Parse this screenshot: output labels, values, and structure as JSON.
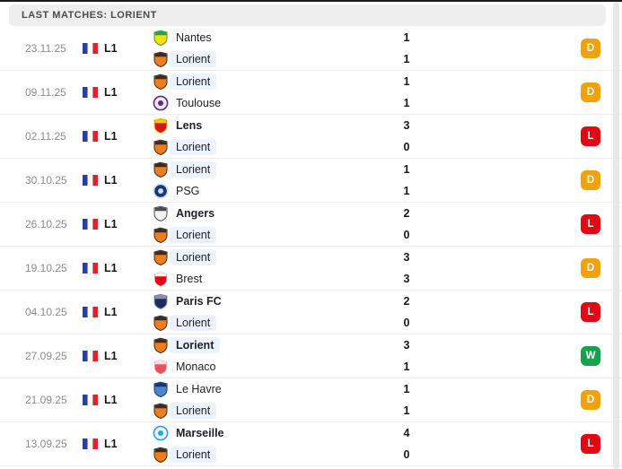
{
  "header": {
    "title": "LAST MATCHES: LORIENT"
  },
  "colors": {
    "win": "#15a24b",
    "draw": "#f0a20d",
    "loss": "#e30613",
    "highlight": "#edf3fc"
  },
  "competition_flag": "france-flag",
  "rows": [
    {
      "date": "23.11.25",
      "competition": "L1",
      "result": "D",
      "home": {
        "name": "Nantes",
        "score": "1",
        "winner": false,
        "highlight": false,
        "logo": {
          "shape": "shield",
          "primary": "#f8e000",
          "secondary": "#2f9e44"
        }
      },
      "away": {
        "name": "Lorient",
        "score": "1",
        "winner": false,
        "highlight": true,
        "logo": {
          "shape": "shield",
          "primary": "#ee7d1e",
          "secondary": "#3a2c22"
        }
      }
    },
    {
      "date": "09.11.25",
      "competition": "L1",
      "result": "D",
      "home": {
        "name": "Lorient",
        "score": "1",
        "winner": false,
        "highlight": true,
        "logo": {
          "shape": "shield",
          "primary": "#ee7d1e",
          "secondary": "#3a2c22"
        }
      },
      "away": {
        "name": "Toulouse",
        "score": "1",
        "winner": false,
        "highlight": false,
        "logo": {
          "shape": "circle",
          "primary": "#ede6f3",
          "secondary": "#5b2d83"
        }
      }
    },
    {
      "date": "02.11.25",
      "competition": "L1",
      "result": "L",
      "home": {
        "name": "Lens",
        "score": "3",
        "winner": true,
        "highlight": false,
        "logo": {
          "shape": "shield",
          "primary": "#d8151f",
          "secondary": "#f4c713"
        }
      },
      "away": {
        "name": "Lorient",
        "score": "0",
        "winner": false,
        "highlight": true,
        "logo": {
          "shape": "shield",
          "primary": "#ee7d1e",
          "secondary": "#3a2c22"
        }
      }
    },
    {
      "date": "30.10.25",
      "competition": "L1",
      "result": "D",
      "home": {
        "name": "Lorient",
        "score": "1",
        "winner": false,
        "highlight": true,
        "logo": {
          "shape": "shield",
          "primary": "#ee7d1e",
          "secondary": "#3a2c22"
        }
      },
      "away": {
        "name": "PSG",
        "score": "1",
        "winner": false,
        "highlight": false,
        "logo": {
          "shape": "circle",
          "primary": "#16397b",
          "secondary": "#cfd9ea"
        }
      }
    },
    {
      "date": "26.10.25",
      "competition": "L1",
      "result": "L",
      "home": {
        "name": "Angers",
        "score": "2",
        "winner": true,
        "highlight": false,
        "logo": {
          "shape": "shield",
          "primary": "#f2f2f2",
          "secondary": "#4a4a52"
        }
      },
      "away": {
        "name": "Lorient",
        "score": "0",
        "winner": false,
        "highlight": true,
        "logo": {
          "shape": "shield",
          "primary": "#ee7d1e",
          "secondary": "#3a2c22"
        }
      }
    },
    {
      "date": "19.10.25",
      "competition": "L1",
      "result": "D",
      "home": {
        "name": "Lorient",
        "score": "3",
        "winner": false,
        "highlight": true,
        "logo": {
          "shape": "shield",
          "primary": "#ee7d1e",
          "secondary": "#3a2c22"
        }
      },
      "away": {
        "name": "Brest",
        "score": "3",
        "winner": false,
        "highlight": false,
        "logo": {
          "shape": "shield",
          "primary": "#e30613",
          "secondary": "#f5f5f5"
        }
      }
    },
    {
      "date": "04.10.25",
      "competition": "L1",
      "result": "L",
      "home": {
        "name": "Paris FC",
        "score": "2",
        "winner": true,
        "highlight": false,
        "logo": {
          "shape": "shield",
          "primary": "#1d2e5e",
          "secondary": "#8a93ab"
        }
      },
      "away": {
        "name": "Lorient",
        "score": "0",
        "winner": false,
        "highlight": true,
        "logo": {
          "shape": "shield",
          "primary": "#ee7d1e",
          "secondary": "#3a2c22"
        }
      }
    },
    {
      "date": "27.09.25",
      "competition": "L1",
      "result": "W",
      "home": {
        "name": "Lorient",
        "score": "3",
        "winner": true,
        "highlight": true,
        "logo": {
          "shape": "shield",
          "primary": "#ee7d1e",
          "secondary": "#3a2c22"
        }
      },
      "away": {
        "name": "Monaco",
        "score": "1",
        "winner": false,
        "highlight": false,
        "logo": {
          "shape": "shield",
          "primary": "#e8525f",
          "secondary": "#f8e3e5"
        }
      }
    },
    {
      "date": "21.09.25",
      "competition": "L1",
      "result": "D",
      "home": {
        "name": "Le Havre",
        "score": "1",
        "winner": false,
        "highlight": false,
        "logo": {
          "shape": "shield",
          "primary": "#4a86c8",
          "secondary": "#17356e"
        }
      },
      "away": {
        "name": "Lorient",
        "score": "1",
        "winner": false,
        "highlight": true,
        "logo": {
          "shape": "shield",
          "primary": "#ee7d1e",
          "secondary": "#3a2c22"
        }
      }
    },
    {
      "date": "13.09.25",
      "competition": "L1",
      "result": "L",
      "home": {
        "name": "Marseille",
        "score": "4",
        "winner": true,
        "highlight": false,
        "logo": {
          "shape": "circle",
          "primary": "#eaf4fb",
          "secondary": "#2ea3dc"
        }
      },
      "away": {
        "name": "Lorient",
        "score": "0",
        "winner": false,
        "highlight": true,
        "logo": {
          "shape": "shield",
          "primary": "#ee7d1e",
          "secondary": "#3a2c22"
        }
      }
    }
  ]
}
